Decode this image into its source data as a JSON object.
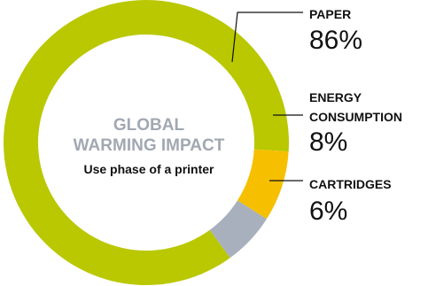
{
  "chart_data": {
    "type": "pie",
    "title": "GLOBAL WARMING IMPACT",
    "subtitle": "Use phase of a printer",
    "categories": [
      "PAPER",
      "ENERGY CONSUMPTION",
      "CARTRIDGES"
    ],
    "values": [
      86,
      8,
      6
    ],
    "value_labels": [
      "86%",
      "8%",
      "6%"
    ],
    "colors": [
      "#b9c800",
      "#f6bf00",
      "#a8b0bd"
    ],
    "legend_placement": "right"
  }
}
